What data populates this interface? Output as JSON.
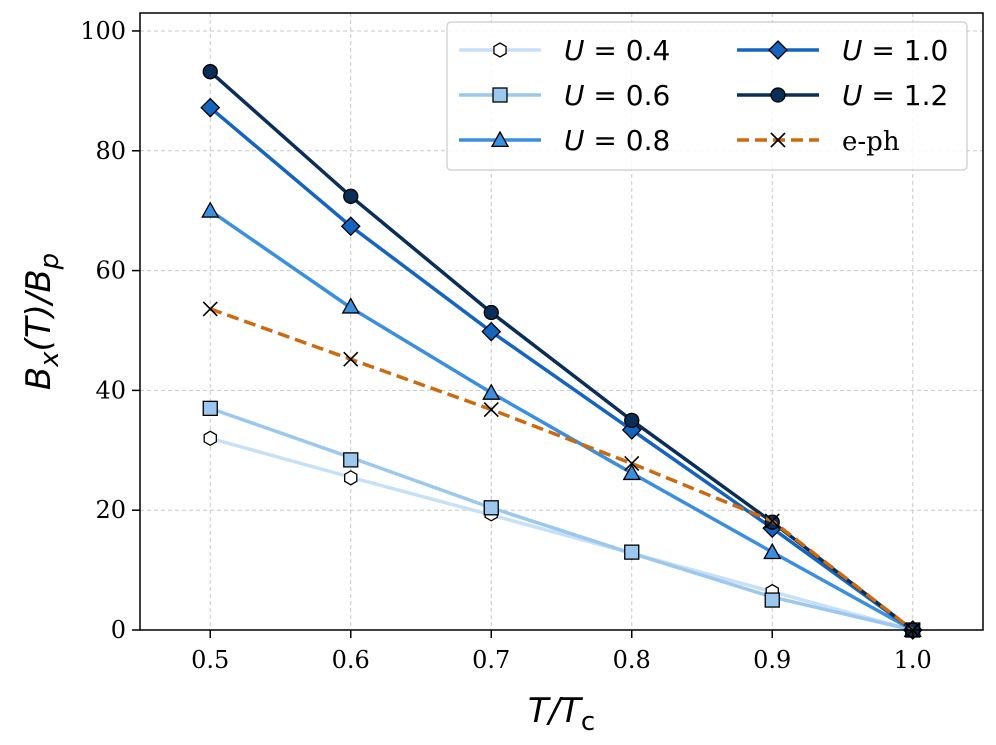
{
  "chart_data": {
    "type": "line",
    "xlabel": "T/T_c",
    "ylabel": "B_x(T)/B_p",
    "xlim": [
      0.45,
      1.05
    ],
    "ylim": [
      0,
      103
    ],
    "x_ticks": [
      0.5,
      0.6,
      0.7,
      0.8,
      0.9,
      1.0
    ],
    "x_tick_labels": [
      "0.5",
      "0.6",
      "0.7",
      "0.8",
      "0.9",
      "1.0"
    ],
    "y_ticks": [
      0,
      20,
      40,
      60,
      80,
      100
    ],
    "y_tick_labels": [
      "0",
      "20",
      "40",
      "60",
      "80",
      "100"
    ],
    "grid": true,
    "legend_position": "top-right",
    "series": [
      {
        "name": "U = 0.4",
        "label_var": "U",
        "label_val": "= 0.4",
        "color": "#c6e0f7",
        "marker": "hexagon",
        "marker_fill": "#ffffff",
        "style": "solid",
        "x": [
          0.5,
          0.6,
          0.7,
          0.8,
          0.9,
          1.0
        ],
        "fit": [
          32,
          25.5,
          19.2,
          12.8,
          6.4,
          0
        ],
        "points": [
          32,
          25.4,
          19.4,
          13,
          6.4,
          0
        ]
      },
      {
        "name": "U = 0.6",
        "label_var": "U",
        "label_val": "= 0.6",
        "color": "#9cc8ef",
        "marker": "square",
        "marker_fill": "#9cc8ef",
        "style": "solid",
        "x": [
          0.5,
          0.6,
          0.7,
          0.8,
          0.9,
          1.0
        ],
        "fit": [
          37,
          28.8,
          20.4,
          12.8,
          5.5,
          0
        ],
        "points": [
          37,
          28.4,
          20.4,
          13,
          5,
          0
        ]
      },
      {
        "name": "U = 0.8",
        "label_var": "U",
        "label_val": "= 0.8",
        "color": "#3b8fe0",
        "marker": "triangle",
        "marker_fill": "#3b8fe0",
        "style": "solid",
        "x": [
          0.5,
          0.6,
          0.7,
          0.8,
          0.9,
          1.0
        ],
        "fit": [
          70,
          53.8,
          39.6,
          26.2,
          13,
          0
        ],
        "points": [
          70,
          54,
          39.6,
          26.2,
          13,
          0
        ]
      },
      {
        "name": "U = 1.0",
        "label_var": "U",
        "label_val": "= 1.0",
        "color": "#1565c0",
        "marker": "diamond",
        "marker_fill": "#1565c0",
        "style": "solid",
        "x": [
          0.5,
          0.6,
          0.7,
          0.8,
          0.9,
          1.0
        ],
        "fit": [
          87.2,
          67.4,
          49.8,
          33.4,
          17,
          0
        ],
        "points": [
          87.2,
          67.4,
          49.8,
          33.4,
          17,
          0
        ]
      },
      {
        "name": "U = 1.2",
        "label_var": "U",
        "label_val": "= 1.2",
        "color": "#0b2e59",
        "marker": "circle",
        "marker_fill": "#0b2e59",
        "style": "solid",
        "x": [
          0.5,
          0.6,
          0.7,
          0.8,
          0.9,
          1.0
        ],
        "fit": [
          93.2,
          72.4,
          53,
          35,
          18,
          0
        ],
        "points": [
          93.2,
          72.4,
          53,
          35,
          18,
          0
        ]
      },
      {
        "name": "e-ph",
        "label_var": "",
        "label_val": "e-ph",
        "color": "#cc6a10",
        "marker": "x",
        "marker_fill": "#000000",
        "style": "dashed",
        "x": [
          0.5,
          0.6,
          0.7,
          0.8,
          0.9,
          1.0
        ],
        "fit": [
          53.6,
          45.2,
          36.8,
          27.8,
          18.2,
          0
        ],
        "points": [
          53.6,
          45.2,
          36.8,
          27.8,
          18.2,
          0
        ]
      }
    ]
  }
}
